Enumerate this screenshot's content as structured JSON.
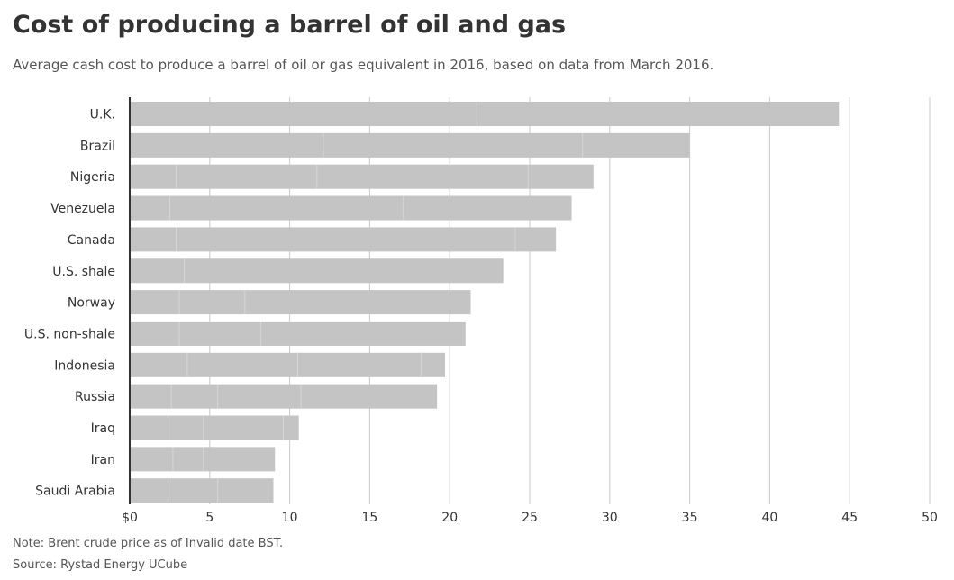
{
  "title": "Cost of producing a barrel of oil and gas",
  "subtitle": "Average cash cost to produce a barrel of oil or gas equivalent in 2016, based on data from March 2016.",
  "note": "Note: Brent crude price as of Invalid date BST.",
  "source": "Source: Rystad Energy UCube",
  "colors": {
    "bar": "#c4c4c4",
    "segment_divider": "#d6d6d6",
    "grid": "#c8c8c8",
    "axis": "#333333"
  },
  "chart_data": {
    "type": "bar",
    "orientation": "horizontal",
    "stacked": true,
    "title": "Cost of producing a barrel of oil and gas",
    "subtitle": "Average cash cost to produce a barrel of oil or gas equivalent in 2016, based on data from March 2016.",
    "xlabel": "",
    "ylabel": "",
    "xlim": [
      0,
      50
    ],
    "xticks": [
      0,
      5,
      10,
      15,
      20,
      25,
      30,
      35,
      40,
      45,
      50
    ],
    "xtick_labels": [
      "$0",
      "5",
      "10",
      "15",
      "20",
      "25",
      "30",
      "35",
      "40",
      "45",
      "50"
    ],
    "grid": true,
    "legend": "none",
    "categories": [
      "U.K.",
      "Brazil",
      "Nigeria",
      "Venezuela",
      "Canada",
      "U.S. shale",
      "Norway",
      "U.S. non-shale",
      "Indonesia",
      "Russia",
      "Iraq",
      "Iran",
      "Saudi Arabia"
    ],
    "values": [
      44.33,
      34.99,
      28.99,
      27.62,
      26.64,
      23.35,
      21.31,
      20.99,
      19.71,
      19.21,
      10.57,
      9.08,
      8.98
    ],
    "segment_boundaries": [
      [
        21.7
      ],
      [
        12.1,
        28.3
      ],
      [
        2.9,
        11.7,
        24.9
      ],
      [
        2.5,
        17.1
      ],
      [
        2.9,
        24.1
      ],
      [
        3.4
      ],
      [
        3.1,
        7.2
      ],
      [
        3.1,
        8.2
      ],
      [
        3.6,
        10.5,
        18.2
      ],
      [
        2.6,
        5.5,
        10.7
      ],
      [
        2.4,
        4.6,
        9.6
      ],
      [
        2.7,
        4.6
      ],
      [
        2.4,
        5.5
      ]
    ]
  }
}
